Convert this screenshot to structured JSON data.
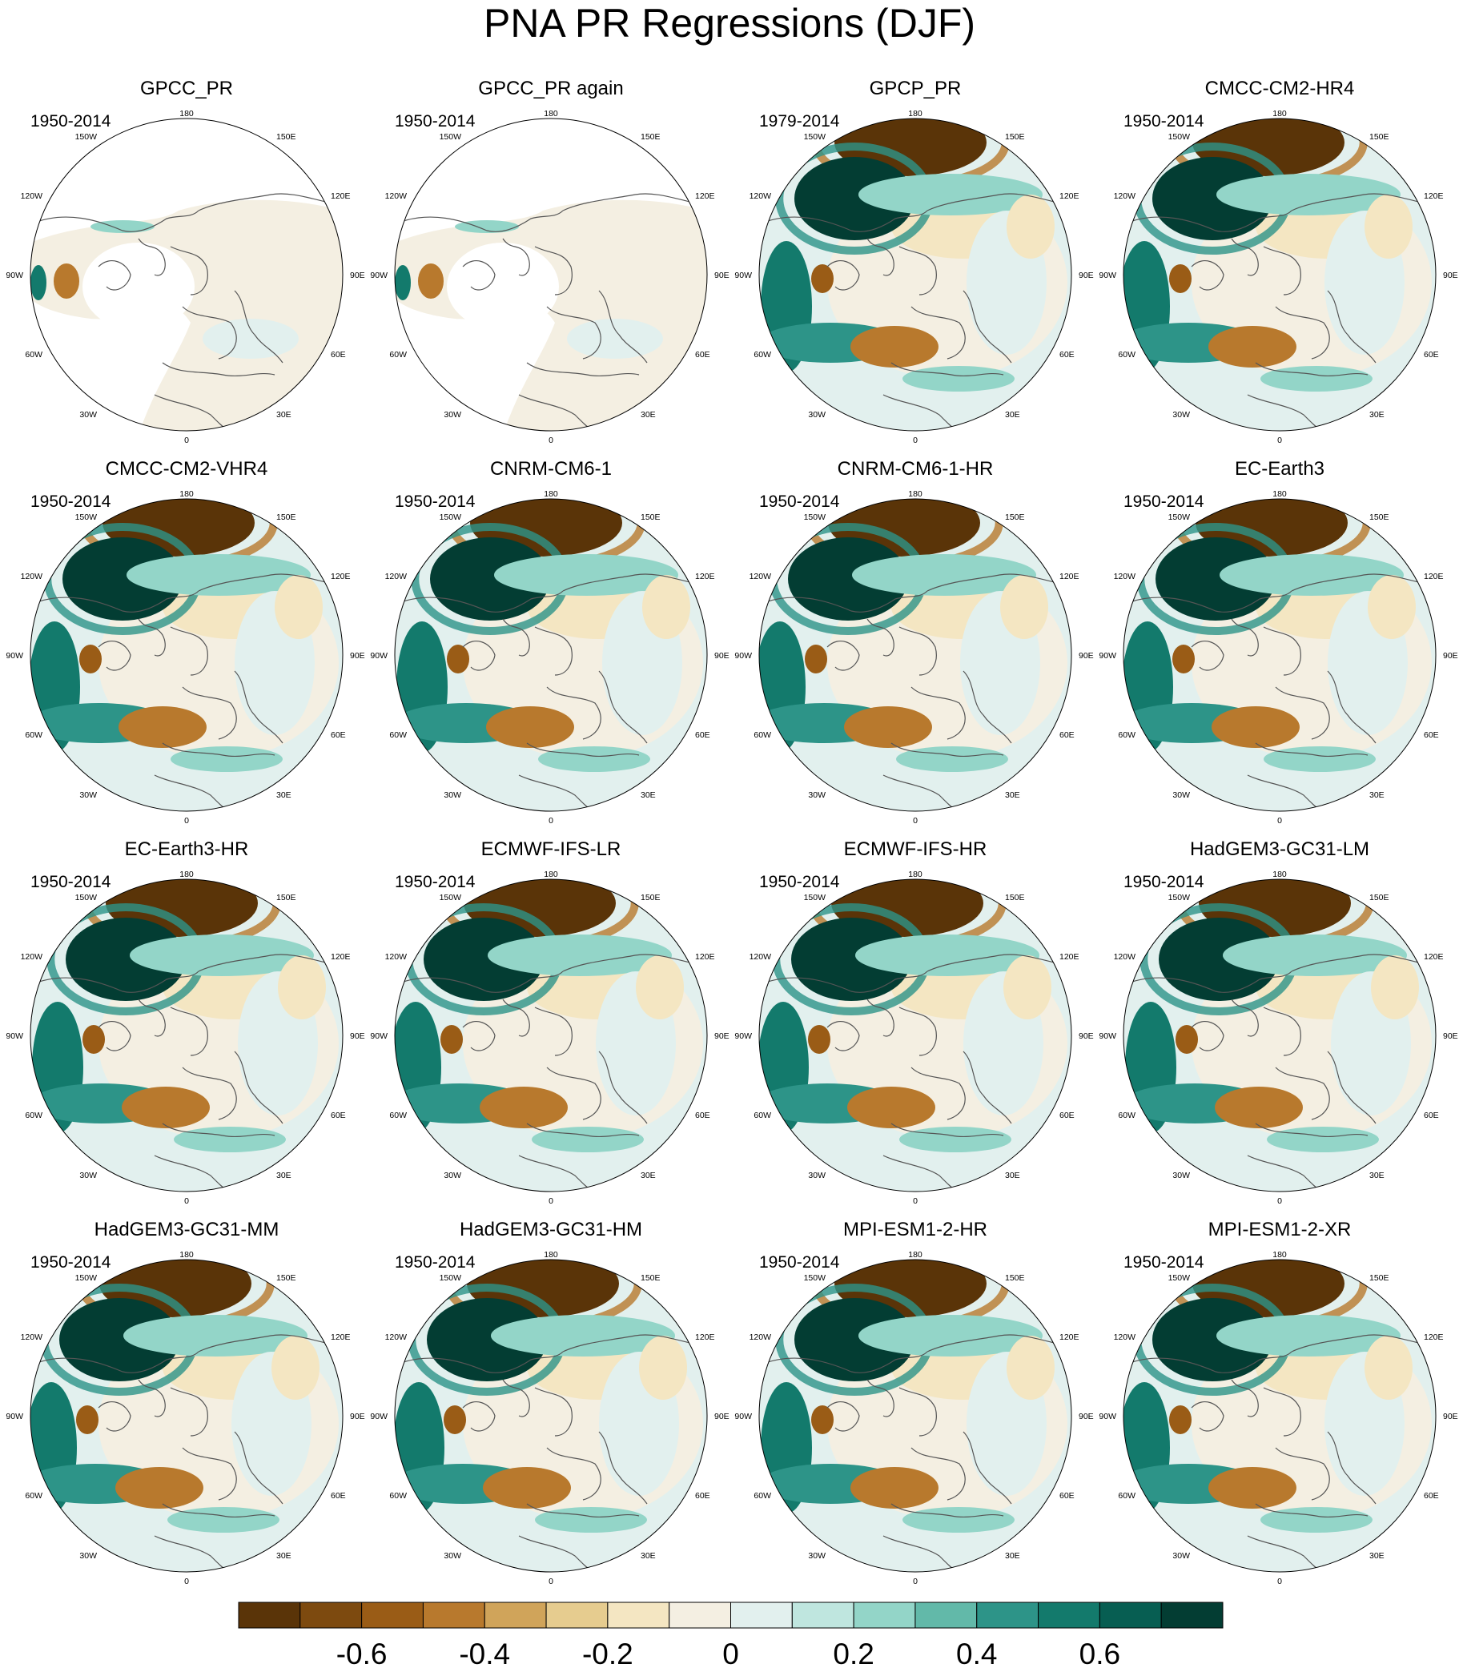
{
  "title": "PNA PR Regressions (DJF)",
  "longitude_labels": {
    "top": "180",
    "upper_left": "150W",
    "upper_right": "150E",
    "left_upper": "120W",
    "right_upper": "120E",
    "left_mid": "90W",
    "right_mid": "90E",
    "left_lower": "60W",
    "right_lower": "60E",
    "lower_left": "30W",
    "lower_right": "30E",
    "bottom": "0"
  },
  "panels": [
    {
      "name": "GPCC_PR",
      "period": "1950-2014",
      "style": "obs-land"
    },
    {
      "name": "GPCC_PR again",
      "period": "1950-2014",
      "style": "obs-land"
    },
    {
      "name": "GPCP_PR",
      "period": "1979-2014",
      "style": "model"
    },
    {
      "name": "CMCC-CM2-HR4",
      "period": "1950-2014",
      "style": "model"
    },
    {
      "name": "CMCC-CM2-VHR4",
      "period": "1950-2014",
      "style": "model"
    },
    {
      "name": "CNRM-CM6-1",
      "period": "1950-2014",
      "style": "model"
    },
    {
      "name": "CNRM-CM6-1-HR",
      "period": "1950-2014",
      "style": "model"
    },
    {
      "name": "EC-Earth3",
      "period": "1950-2014",
      "style": "model"
    },
    {
      "name": "EC-Earth3-HR",
      "period": "1950-2014",
      "style": "model"
    },
    {
      "name": "ECMWF-IFS-LR",
      "period": "1950-2014",
      "style": "model"
    },
    {
      "name": "ECMWF-IFS-HR",
      "period": "1950-2014",
      "style": "model"
    },
    {
      "name": "HadGEM3-GC31-LM",
      "period": "1950-2014",
      "style": "model"
    },
    {
      "name": "HadGEM3-GC31-MM",
      "period": "1950-2014",
      "style": "model"
    },
    {
      "name": "HadGEM3-GC31-HM",
      "period": "1950-2014",
      "style": "model"
    },
    {
      "name": "MPI-ESM1-2-HR",
      "period": "1950-2014",
      "style": "model"
    },
    {
      "name": "MPI-ESM1-2-XR",
      "period": "1950-2014",
      "style": "model"
    }
  ],
  "colorbar": {
    "colors": [
      "#5a3408",
      "#7d4a0f",
      "#9a5c16",
      "#b8792d",
      "#d0a45a",
      "#e6cc8f",
      "#f4e6c2",
      "#f4efe2",
      "#e2f0ee",
      "#bfe6df",
      "#93d5c8",
      "#62b9a9",
      "#2d9488",
      "#137a6c",
      "#075e52",
      "#033d33"
    ],
    "tick_labels": [
      "-0.6",
      "-0.4",
      "-0.2",
      "0",
      "0.2",
      "0.4",
      "0.6"
    ]
  }
}
